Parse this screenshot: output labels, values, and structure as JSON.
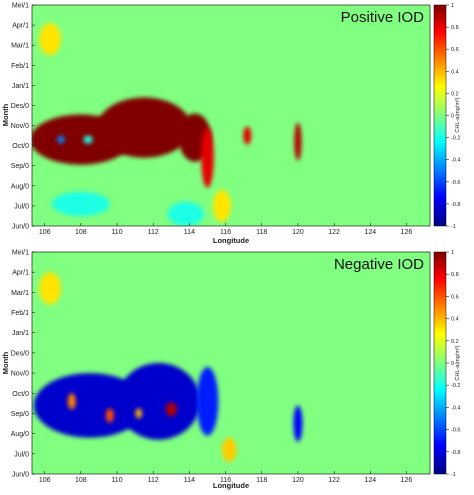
{
  "chart_data": [
    {
      "type": "heatmap",
      "title": "Positive IOD",
      "xlabel": "Longitude",
      "ylabel": "Month",
      "x_ticks": [
        "106",
        "108",
        "110",
        "112",
        "114",
        "116",
        "118",
        "120",
        "122",
        "124",
        "126"
      ],
      "y_ticks": [
        "Jun/0",
        "Jul/0",
        "Aug/0",
        "Sep/0",
        "Oct/0",
        "Nov/0",
        "Des/0",
        "Jan/1",
        "Feb/1",
        "Mar/1",
        "Apr/1",
        "Mei/1"
      ],
      "xlim": [
        105.3,
        127.3
      ],
      "ylim": [
        0,
        11
      ],
      "colorbar": {
        "label": "CHL-a(mg/m³)",
        "range": [
          -1,
          1
        ],
        "ticks": [
          "1",
          "0.8",
          "0.6",
          "0.4",
          "0.2",
          "0",
          "-0.2",
          "-0.4",
          "-0.6",
          "-0.8",
          "-1"
        ]
      },
      "blobs": [
        {
          "x": 108.0,
          "y": 4.3,
          "rx": 2.8,
          "ry": 1.25,
          "value": 1.0
        },
        {
          "x": 111.5,
          "y": 4.9,
          "rx": 2.6,
          "ry": 1.5,
          "value": 1.0
        },
        {
          "x": 114.3,
          "y": 4.4,
          "rx": 0.9,
          "ry": 1.2,
          "value": 1.0
        },
        {
          "x": 115.0,
          "y": 3.4,
          "rx": 0.35,
          "ry": 1.5,
          "value": 0.8
        },
        {
          "x": 117.2,
          "y": 4.5,
          "rx": 0.22,
          "ry": 0.45,
          "value": 0.8
        },
        {
          "x": 120.0,
          "y": 4.2,
          "rx": 0.2,
          "ry": 0.95,
          "value": 0.9
        },
        {
          "x": 106.9,
          "y": 4.3,
          "rx": 0.2,
          "ry": 0.2,
          "value": -0.5
        },
        {
          "x": 108.4,
          "y": 4.3,
          "rx": 0.25,
          "ry": 0.2,
          "value": -0.2
        },
        {
          "x": 108.0,
          "y": 1.1,
          "rx": 1.6,
          "ry": 0.6,
          "value": -0.2
        },
        {
          "x": 113.8,
          "y": 0.6,
          "rx": 1.0,
          "ry": 0.6,
          "value": -0.2
        },
        {
          "x": 115.8,
          "y": 1.0,
          "rx": 0.5,
          "ry": 0.8,
          "value": 0.3
        },
        {
          "x": 106.3,
          "y": 9.3,
          "rx": 0.6,
          "ry": 0.8,
          "value": 0.3
        }
      ]
    },
    {
      "type": "heatmap",
      "title": "Negative IOD",
      "xlabel": "Longitude",
      "ylabel": "Month",
      "x_ticks": [
        "106",
        "108",
        "110",
        "112",
        "114",
        "116",
        "118",
        "120",
        "122",
        "124",
        "126"
      ],
      "y_ticks": [
        "Jun/0",
        "Jul/0",
        "Aug/0",
        "Sep/0",
        "Oct/0",
        "Nov/0",
        "Des/0",
        "Jan/1",
        "Feb/1",
        "Mar/1",
        "Apr/1",
        "Mei/1"
      ],
      "xlim": [
        105.3,
        127.3
      ],
      "ylim": [
        0,
        11
      ],
      "colorbar": {
        "label": "CHL-a(mg/m³)",
        "range": [
          -1,
          1
        ],
        "ticks": [
          "1",
          "0.8",
          "0.6",
          "0.4",
          "0.2",
          "0",
          "-0.2",
          "-0.4",
          "-0.6",
          "-0.8",
          "-1"
        ]
      },
      "blobs": [
        {
          "x": 108.5,
          "y": 3.4,
          "rx": 3.1,
          "ry": 1.6,
          "value": -0.85
        },
        {
          "x": 112.3,
          "y": 3.6,
          "rx": 2.3,
          "ry": 1.9,
          "value": -0.85
        },
        {
          "x": 115.0,
          "y": 3.6,
          "rx": 0.6,
          "ry": 1.7,
          "value": -0.7
        },
        {
          "x": 120.0,
          "y": 2.5,
          "rx": 0.25,
          "ry": 0.9,
          "value": -0.75
        },
        {
          "x": 113.0,
          "y": 3.2,
          "rx": 0.3,
          "ry": 0.35,
          "value": 0.9
        },
        {
          "x": 107.5,
          "y": 3.6,
          "rx": 0.22,
          "ry": 0.4,
          "value": 0.5
        },
        {
          "x": 109.6,
          "y": 2.9,
          "rx": 0.22,
          "ry": 0.35,
          "value": 0.6
        },
        {
          "x": 111.2,
          "y": 3.0,
          "rx": 0.18,
          "ry": 0.25,
          "value": 0.4
        },
        {
          "x": 116.2,
          "y": 1.2,
          "rx": 0.4,
          "ry": 0.6,
          "value": 0.35
        },
        {
          "x": 106.3,
          "y": 9.2,
          "rx": 0.6,
          "ry": 0.8,
          "value": 0.3
        }
      ]
    }
  ]
}
